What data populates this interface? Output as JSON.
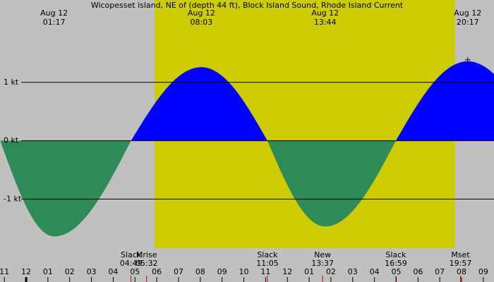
{
  "chart_data": {
    "type": "tide",
    "title": "Wicopesset island, NE of (depth 44 ft), Block Island Sound, Rhode Island Current",
    "x": [
      1.283,
      4.817,
      8.05,
      11.083,
      13.733,
      16.983,
      20.283
    ],
    "values": [
      -1.64,
      0,
      1.26,
      0,
      -1.47,
      0,
      1.36
    ],
    "flood_color": "#0000ff",
    "ebb_color": "#2e8b57",
    "daylight": [
      5.9,
      19.7
    ],
    "day_color": "#cccc00",
    "night_color": "#c0c0c0",
    "peak_labels": [
      {
        "index": 0,
        "date": "Aug 12",
        "time": "01:17"
      },
      {
        "index": 2,
        "date": "Aug 12",
        "time": "08:03"
      },
      {
        "index": 4,
        "date": "Aug 12",
        "time": "13:44"
      },
      {
        "index": 6,
        "date": "Aug 12",
        "time": "20:17"
      }
    ],
    "events": [
      {
        "label": "Slack",
        "time": "04:49",
        "x": 4.817
      },
      {
        "label": "Mrise",
        "time": "05:32",
        "x": 5.533
      },
      {
        "label": "Slack",
        "time": "11:05",
        "x": 11.083
      },
      {
        "label": "New",
        "time": "13:37",
        "x": 13.617
      },
      {
        "label": "Slack",
        "time": "16:59",
        "x": 16.983
      },
      {
        "label": "Mset",
        "time": "19:57",
        "x": 19.95
      }
    ],
    "ylim": [
      -2.42,
      2.41
    ],
    "yticks": [
      {
        "value": 1,
        "label": "1 kt"
      },
      {
        "value": 0,
        "label": "0 kt"
      },
      {
        "value": -1,
        "label": "-1 kt"
      }
    ],
    "xlim": [
      -1.2,
      21.49
    ],
    "xticks": [
      {
        "value": -1,
        "label": "11"
      },
      {
        "value": 0,
        "label": "12"
      },
      {
        "value": 1,
        "label": "01"
      },
      {
        "value": 2,
        "label": "02"
      },
      {
        "value": 3,
        "label": "03"
      },
      {
        "value": 4,
        "label": "04"
      },
      {
        "value": 5,
        "label": "05"
      },
      {
        "value": 6,
        "label": "06"
      },
      {
        "value": 7,
        "label": "07"
      },
      {
        "value": 8,
        "label": "08"
      },
      {
        "value": 9,
        "label": "09"
      },
      {
        "value": 10,
        "label": "10"
      },
      {
        "value": 11,
        "label": "11"
      },
      {
        "value": 12,
        "label": "12"
      },
      {
        "value": 13,
        "label": "01"
      },
      {
        "value": 14,
        "label": "02"
      },
      {
        "value": 15,
        "label": "03"
      },
      {
        "value": 16,
        "label": "04"
      },
      {
        "value": 17,
        "label": "05"
      },
      {
        "value": 18,
        "label": "06"
      },
      {
        "value": 19,
        "label": "07"
      },
      {
        "value": 20,
        "label": "08"
      },
      {
        "value": 21,
        "label": "09"
      }
    ]
  }
}
